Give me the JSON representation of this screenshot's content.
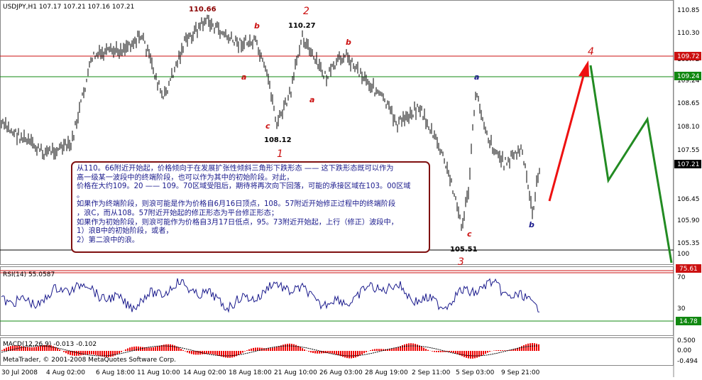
{
  "window": {
    "header": "USDJPY,H1  107.17 107.21 107.16 107.21",
    "copyright": "MetaTrader, © 2001-2008 MetaQuotes Software Corp."
  },
  "price_axis": {
    "ticks": [
      "110.85",
      "110.30",
      "109.72",
      "109.24",
      "108.65",
      "108.10",
      "107.55",
      "107.21",
      "106.45",
      "105.90",
      "105.35"
    ],
    "badges": [
      {
        "text": "109.72",
        "color": "#cc1111"
      },
      {
        "text": "109.24",
        "color": "#118811"
      },
      {
        "text": "107.21",
        "color": "#000000"
      }
    ]
  },
  "rsi_axis": {
    "ticks": [
      "100",
      "70",
      "30"
    ],
    "badges": [
      {
        "text": "75.61",
        "color": "#cc1111"
      },
      {
        "text": "14.78",
        "color": "#118811"
      }
    ]
  },
  "macd_axis": {
    "ticks": [
      "0.500",
      "0.00",
      "-0.494"
    ]
  },
  "indicators": {
    "rsi_label": "RSI(14) 55.0587",
    "macd_label": "MACD(12,26,9) -0.013 -0.102"
  },
  "time_axis": {
    "labels": [
      "30 Jul 2008",
      "4 Aug 02:00",
      "6 Aug 18:00",
      "11 Aug 10:00",
      "14 Aug 02:00",
      "18 Aug 18:00",
      "21 Aug 10:00",
      "26 Aug 03:00",
      "28 Aug 19:00",
      "2 Sep 11:00",
      "5 Sep 03:00",
      "9 Sep 21:00"
    ]
  },
  "price_labels": {
    "p1": "110.66",
    "p2": "110.27",
    "p3": "108.12",
    "p4": "105.51"
  },
  "wave_labels": {
    "w1": "1",
    "w2": "2",
    "w3": "3",
    "w4": "4",
    "a1": "a",
    "b1": "b",
    "c1": "c",
    "a2": "a",
    "b2": "b",
    "c2": "c",
    "a3": "a",
    "b3": "b"
  },
  "annotation": {
    "lines": [
      "从110。66附近开始起，价格倾向于在发展扩张性倾斜三角形下跌形态 —— 这下跌形态既可以作为",
      "高一级某一波段中的终端阶段，也可以作为其中的初始阶段。对此，",
      "价格在大约109。20 —— 109。70区域受阻后，期待将再次向下回落，可能的承接区域在103。00区域",
      "。",
      "如果作为终端阶段，则浪可能是作为价格自6月16日顶点，108。57附近开始修正过程中的终端阶段",
      "，浪C，而从108。57附近开始起的修正形态为平台修正形态；",
      "如果作为初始阶段，则浪可能作为价格自3月17日低点，95。73附近开始起，上行（修正）波段中，",
      "1）浪B中的初始阶段，或者，",
      "2）第二浪中的浪。"
    ]
  },
  "colors": {
    "candle": "#000000",
    "up_arrow": "#ee1111",
    "forecast": "#228b22",
    "resistance": "#cc1111",
    "support": "#118811",
    "wave_red": "#cc1111",
    "wave_blue": "#1a1a8c",
    "macd_hist": "#ee0000"
  }
}
